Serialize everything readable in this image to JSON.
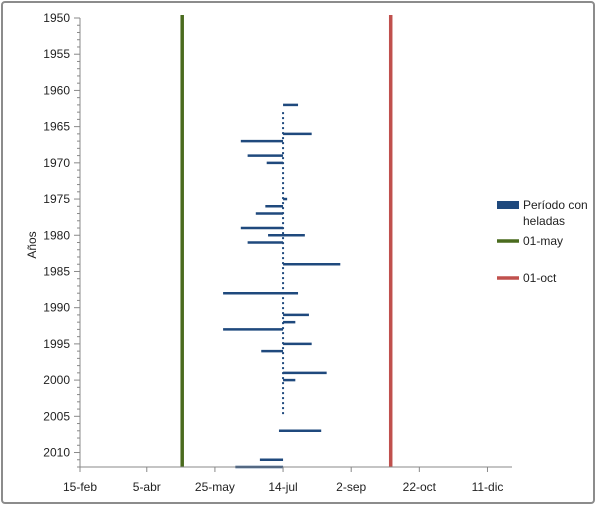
{
  "chart_data": {
    "type": "bar",
    "ylabel": "Años",
    "xlabel": "",
    "title": "",
    "y_ticks": [
      "1950",
      "1955",
      "1960",
      "1965",
      "1970",
      "1975",
      "1980",
      "1985",
      "1990",
      "1995",
      "2000",
      "2005",
      "2010"
    ],
    "y_range": [
      1950,
      2012
    ],
    "y_reversed": true,
    "x_ticks": [
      "15-feb",
      "5-abr",
      "25-may",
      "14-jul",
      "2-sep",
      "22-oct",
      "11-dic"
    ],
    "x_tick_doy": [
      46,
      95,
      145,
      195,
      245,
      295,
      345
    ],
    "x_range_doy": [
      46,
      363
    ],
    "grid": false,
    "legend_position": "right",
    "reference_lines": [
      {
        "label": "01-may",
        "doy": 121,
        "color": "#4a6b1e"
      },
      {
        "label": "01-oct",
        "doy": 274,
        "color": "#c0504d"
      }
    ],
    "series": [
      {
        "name": "Período con heladas",
        "color": "#1f497d",
        "dotted_reference_doy": 195,
        "dotted_year_range": [
          1963,
          2005
        ],
        "segments": [
          {
            "year": 1962,
            "start": "14-jul",
            "end": "25-jul",
            "start_doy": 195,
            "end_doy": 206
          },
          {
            "year": 1966,
            "start": "14-jul",
            "end": "4-ago",
            "start_doy": 195,
            "end_doy": 216
          },
          {
            "year": 1967,
            "start": "13-jun",
            "end": "14-jul",
            "start_doy": 164,
            "end_doy": 195
          },
          {
            "year": 1969,
            "start": "18-jun",
            "end": "14-jul",
            "start_doy": 169,
            "end_doy": 195
          },
          {
            "year": 1970,
            "start": "2-jul",
            "end": "14-jul",
            "start_doy": 183,
            "end_doy": 195
          },
          {
            "year": 1975,
            "start": "14-jul",
            "end": "17-jul",
            "start_doy": 195,
            "end_doy": 198
          },
          {
            "year": 1976,
            "start": "1-jul",
            "end": "14-jul",
            "start_doy": 182,
            "end_doy": 195
          },
          {
            "year": 1977,
            "start": "24-jun",
            "end": "14-jul",
            "start_doy": 175,
            "end_doy": 195
          },
          {
            "year": 1979,
            "start": "13-jun",
            "end": "14-jul",
            "start_doy": 164,
            "end_doy": 195
          },
          {
            "year": 1980,
            "start": "3-jul",
            "end": "30-jul",
            "start_doy": 184,
            "end_doy": 211
          },
          {
            "year": 1981,
            "start": "18-jun",
            "end": "14-jul",
            "start_doy": 169,
            "end_doy": 195
          },
          {
            "year": 1984,
            "start": "14-jul",
            "end": "25-ago",
            "start_doy": 195,
            "end_doy": 237
          },
          {
            "year": 1988,
            "start": "31-may",
            "end": "25-jul",
            "start_doy": 151,
            "end_doy": 206
          },
          {
            "year": 1991,
            "start": "14-jul",
            "end": "2-ago",
            "start_doy": 195,
            "end_doy": 214
          },
          {
            "year": 1992,
            "start": "14-jul",
            "end": "23-jul",
            "start_doy": 195,
            "end_doy": 204
          },
          {
            "year": 1993,
            "start": "31-may",
            "end": "14-jul",
            "start_doy": 151,
            "end_doy": 195
          },
          {
            "year": 1995,
            "start": "14-jul",
            "end": "4-ago",
            "start_doy": 195,
            "end_doy": 216
          },
          {
            "year": 1996,
            "start": "28-jun",
            "end": "14-jul",
            "start_doy": 179,
            "end_doy": 195
          },
          {
            "year": 1999,
            "start": "14-jul",
            "end": "15-ago",
            "start_doy": 195,
            "end_doy": 227
          },
          {
            "year": 2000,
            "start": "14-jul",
            "end": "23-jul",
            "start_doy": 195,
            "end_doy": 204
          },
          {
            "year": 2007,
            "start": "11-jul",
            "end": "11-ago",
            "start_doy": 192,
            "end_doy": 223
          },
          {
            "year": 2011,
            "start": "27-jun",
            "end": "14-jul",
            "start_doy": 178,
            "end_doy": 195
          },
          {
            "year": 2012,
            "start": "9-jun",
            "end": "14-jul",
            "start_doy": 160,
            "end_doy": 195
          }
        ]
      }
    ],
    "legend": [
      {
        "label_lines": [
          "Período con",
          "heladas"
        ],
        "color": "#1f497d",
        "kind": "box"
      },
      {
        "label_lines": [
          "01-may"
        ],
        "color": "#4a6b1e",
        "kind": "line"
      },
      {
        "label_lines": [
          "01-oct"
        ],
        "color": "#c0504d",
        "kind": "line"
      }
    ]
  }
}
